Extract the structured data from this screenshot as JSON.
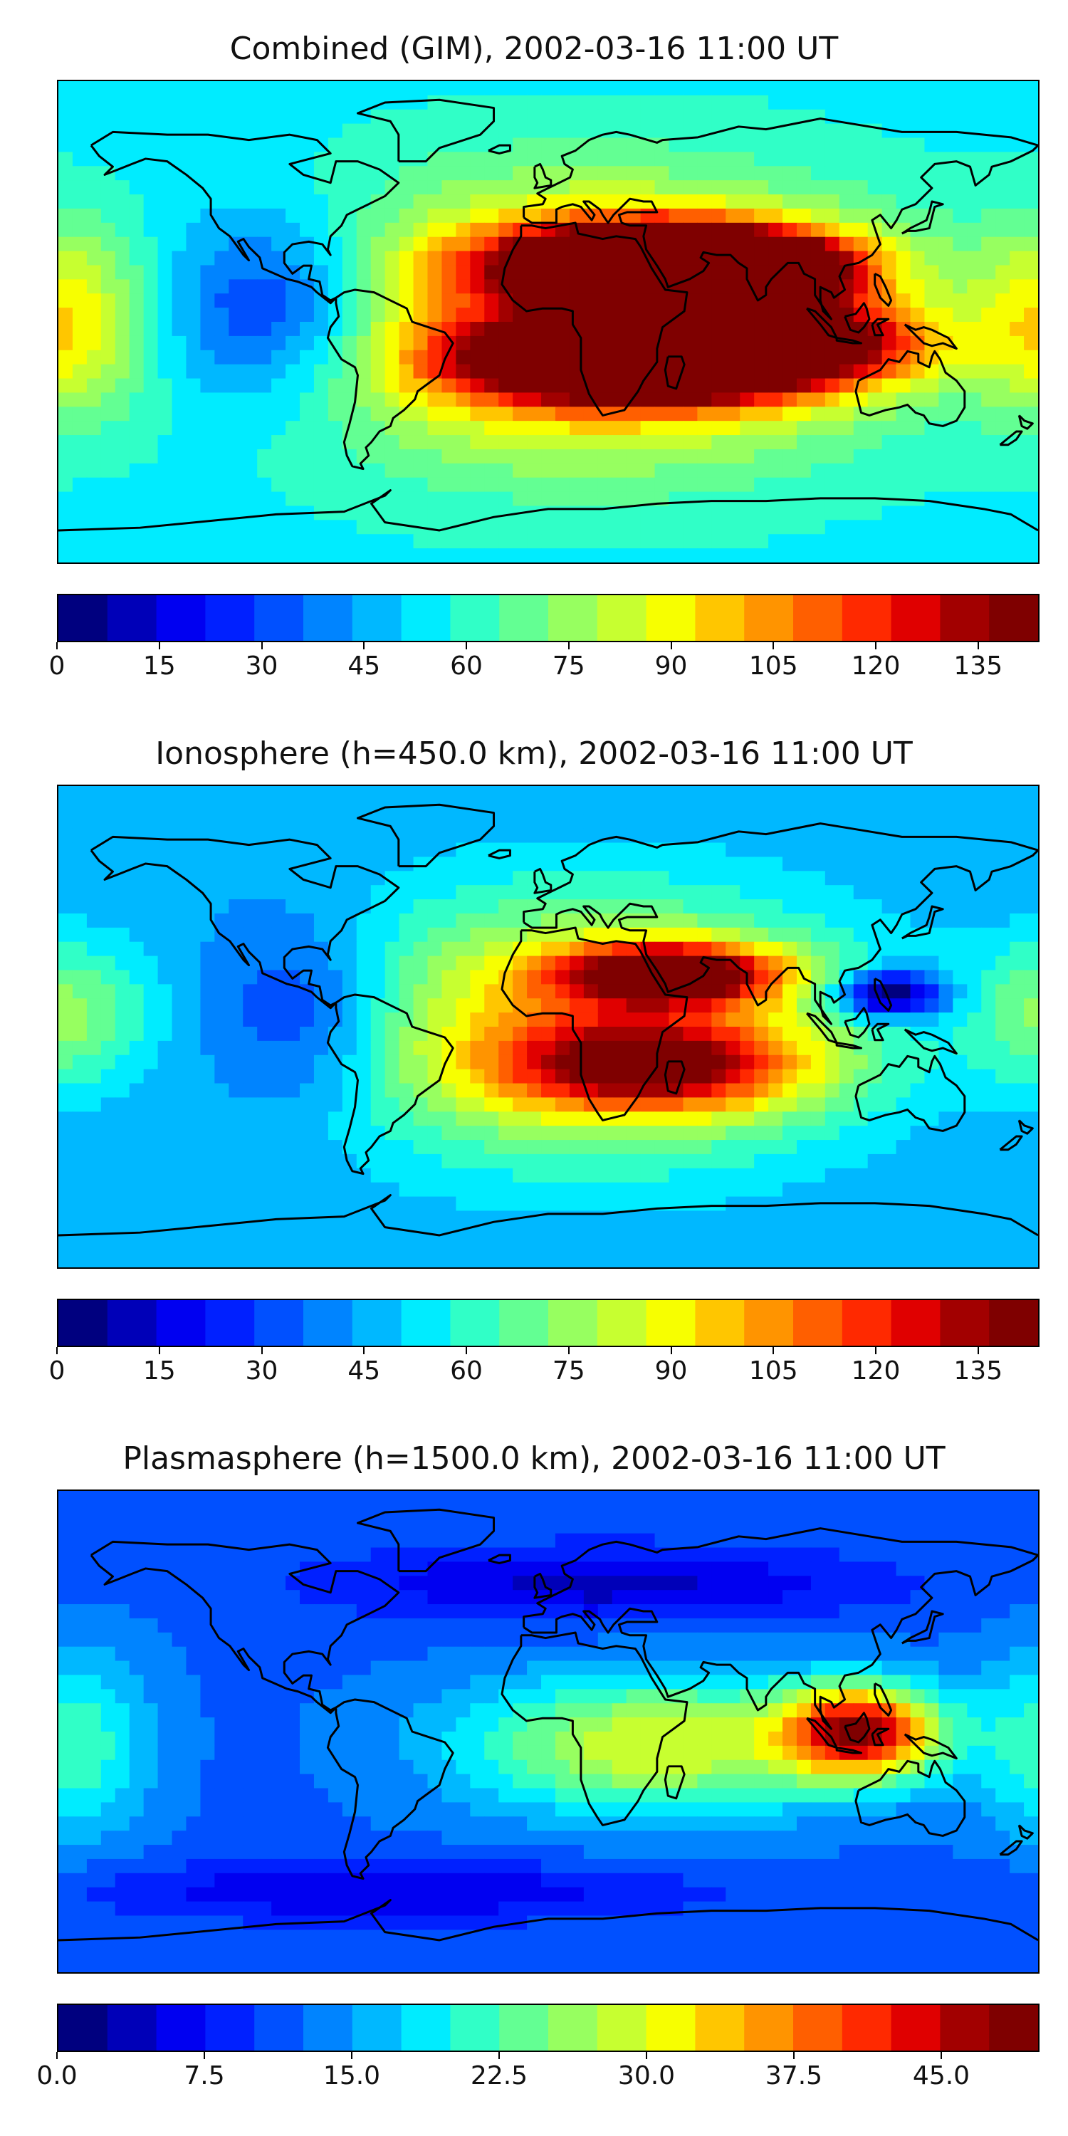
{
  "colormap": [
    "#00007f",
    "#0000b8",
    "#0000f1",
    "#0020ff",
    "#0050ff",
    "#0084ff",
    "#00b8ff",
    "#00ecff",
    "#30ffc7",
    "#63ff93",
    "#97ff60",
    "#c7ff30",
    "#f7ff00",
    "#ffc600",
    "#ff9400",
    "#ff5f00",
    "#ff2900",
    "#e00000",
    "#a20000",
    "#7f0000"
  ],
  "coastline_color": "#000000",
  "panels": [
    {
      "id": "combined",
      "title": "Combined (GIM), 2002-03-16 11:00 UT",
      "colorbar": {
        "min": 0,
        "max": 144,
        "step": 5,
        "ticks": [
          "0",
          "15",
          "30",
          "45",
          "60",
          "75",
          "90",
          "105",
          "120",
          "135"
        ],
        "tick_values": [
          0,
          15,
          30,
          45,
          60,
          75,
          90,
          105,
          120,
          135
        ]
      },
      "field": {
        "background": 38,
        "blobs": [
          {
            "lon": 45,
            "lat": 22,
            "slon": 40,
            "slat": 10,
            "amp": 95
          },
          {
            "lon": 80,
            "lat": 18,
            "slon": 22,
            "slat": 8,
            "amp": 40
          },
          {
            "lon": 40,
            "lat": -15,
            "slon": 45,
            "slat": 10,
            "amp": 90
          },
          {
            "lon": 100,
            "lat": -5,
            "slon": 30,
            "slat": 10,
            "amp": 35
          },
          {
            "lon": 15,
            "lat": 0,
            "slon": 75,
            "slat": 35,
            "amp": 45
          },
          {
            "lon": -100,
            "lat": 5,
            "slon": 30,
            "slat": 25,
            "amp": -28
          },
          {
            "lon": -175,
            "lat": 0,
            "slon": 20,
            "slat": 25,
            "amp": 25
          }
        ]
      }
    },
    {
      "id": "ionosphere",
      "title": "Ionosphere  (h=450.0 km), 2002-03-16 11:00 UT",
      "colorbar": {
        "min": 0,
        "max": 144,
        "step": 5,
        "ticks": [
          "0",
          "15",
          "30",
          "45",
          "60",
          "75",
          "90",
          "105",
          "120",
          "135"
        ],
        "tick_values": [
          0,
          15,
          30,
          45,
          60,
          75,
          90,
          105,
          120,
          135
        ]
      },
      "field": {
        "background": 30,
        "blobs": [
          {
            "lon": 45,
            "lat": 20,
            "slon": 30,
            "slat": 8,
            "amp": 60
          },
          {
            "lon": 40,
            "lat": -15,
            "slon": 40,
            "slat": 12,
            "amp": 45
          },
          {
            "lon": 15,
            "lat": 0,
            "slon": 70,
            "slat": 35,
            "amp": 38
          },
          {
            "lon": 125,
            "lat": 12,
            "slon": 14,
            "slat": 6,
            "amp": -40
          },
          {
            "lon": -90,
            "lat": 5,
            "slon": 25,
            "slat": 25,
            "amp": -18
          },
          {
            "lon": -175,
            "lat": 5,
            "slon": 20,
            "slat": 20,
            "amp": 20
          }
        ]
      }
    },
    {
      "id": "plasmasphere",
      "title": "Plasmasphere (h=1500.0 km), 2002-03-16 11:00 UT",
      "colorbar": {
        "min": 0,
        "max": 50,
        "step": 2.5,
        "ticks": [
          "0.0",
          "7.5",
          "15.0",
          "22.5",
          "30.0",
          "37.5",
          "45.0"
        ],
        "tick_values": [
          0,
          7.5,
          15,
          22.5,
          30,
          37.5,
          45
        ]
      },
      "field": {
        "background": 12,
        "blobs": [
          {
            "lon": 115,
            "lat": 0,
            "slon": 20,
            "slat": 12,
            "amp": 32
          },
          {
            "lon": 40,
            "lat": -5,
            "slon": 50,
            "slat": 18,
            "amp": 18
          },
          {
            "lon": -175,
            "lat": -5,
            "slon": 20,
            "slat": 25,
            "amp": 10
          },
          {
            "lon": 20,
            "lat": 55,
            "slon": 70,
            "slat": 10,
            "amp": -8
          },
          {
            "lon": -60,
            "lat": -60,
            "slon": 80,
            "slat": 8,
            "amp": -7
          }
        ]
      }
    }
  ]
}
